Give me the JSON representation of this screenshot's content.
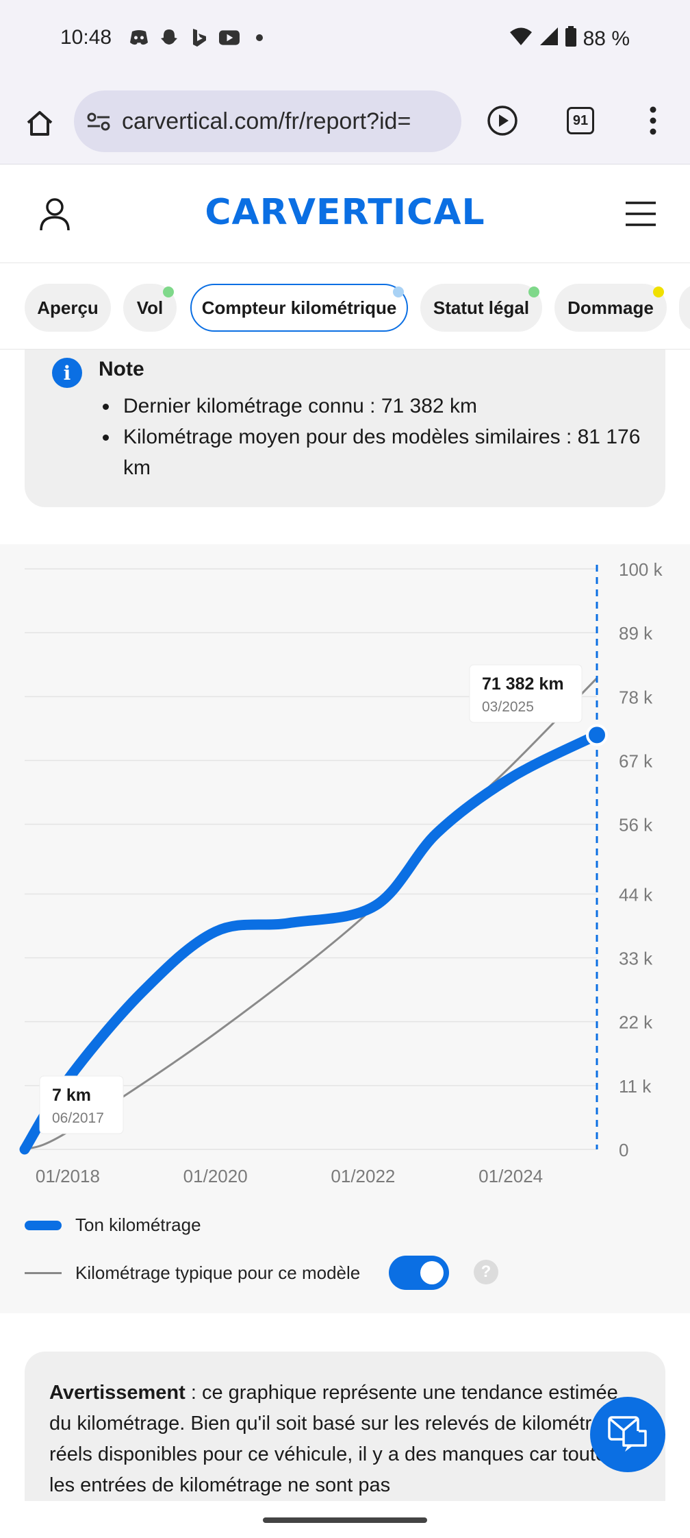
{
  "status_bar": {
    "time": "10:48",
    "battery": "88 %",
    "left_icons": [
      "discord-icon",
      "snapchat-icon",
      "bing-icon",
      "youtube-icon",
      "dot-icon"
    ],
    "right_icons": [
      "wifi-icon",
      "signal-icon",
      "battery-icon"
    ]
  },
  "browser": {
    "url": "carvertical.com/fr/report?id=",
    "tab_count": "91"
  },
  "site": {
    "logo": "CARVERTICAL",
    "brand_color": "#0b6fe3"
  },
  "tabs": [
    {
      "label": "Aperçu",
      "dot_color": ""
    },
    {
      "label": "Vol",
      "dot_color": "#7fd88a"
    },
    {
      "label": "Compteur kilométrique",
      "dot_color": "#a9d2f5",
      "active": true
    },
    {
      "label": "Statut légal",
      "dot_color": "#7fd88a"
    },
    {
      "label": "Dommage",
      "dot_color": "#f0e000"
    }
  ],
  "note": {
    "title": "Note",
    "items": [
      "Dernier kilométrage connu : 71 382 km",
      "Kilométrage moyen pour des modèles similaires : 81 176 km"
    ]
  },
  "chart_data": {
    "type": "line",
    "x_tick_labels": [
      "01/2018",
      "01/2020",
      "01/2022",
      "01/2024"
    ],
    "y_tick_labels": [
      "100 k",
      "89 k",
      "78 k",
      "67 k",
      "56 k",
      "44 k",
      "33 k",
      "22 k",
      "11 k",
      "0"
    ],
    "y_ticks": [
      100000,
      89000,
      78000,
      67000,
      56000,
      44000,
      33000,
      22000,
      11000,
      0
    ],
    "ylim": [
      0,
      100000
    ],
    "xlim": [
      "2017-06",
      "2025-03"
    ],
    "grid": true,
    "series": [
      {
        "name": "Ton kilométrage",
        "color": "#0b6fe3",
        "points": [
          {
            "x": "2017-06",
            "y": 7
          },
          {
            "x": "2018-01",
            "y": 12000
          },
          {
            "x": "2019-01",
            "y": 27000
          },
          {
            "x": "2020-01",
            "y": 37500
          },
          {
            "x": "2021-01",
            "y": 39000
          },
          {
            "x": "2022-03",
            "y": 42000
          },
          {
            "x": "2023-01",
            "y": 54500
          },
          {
            "x": "2024-01",
            "y": 64000
          },
          {
            "x": "2025-03",
            "y": 71382
          }
        ]
      },
      {
        "name": "Kilométrage typique pour ce modèle",
        "color": "#8a8a8a",
        "points": [
          {
            "x": "2017-06",
            "y": 0
          },
          {
            "x": "2018-01",
            "y": 3000
          },
          {
            "x": "2020-01",
            "y": 20000
          },
          {
            "x": "2022-01",
            "y": 40000
          },
          {
            "x": "2023-01",
            "y": 54000
          },
          {
            "x": "2024-01",
            "y": 66000
          },
          {
            "x": "2025-03",
            "y": 81176
          }
        ]
      }
    ],
    "annotations": [
      {
        "value": "7 km",
        "date": "06/2017"
      },
      {
        "value": "71 382 km",
        "date": "03/2025"
      }
    ]
  },
  "legend": {
    "own": "Ton kilométrage",
    "typical": "Kilométrage typique pour ce modèle",
    "toggle_on": true,
    "help": "?"
  },
  "warning": {
    "label": "Avertissement",
    "text": " : ce graphique représente une tendance estimée du kilométrage. Bien qu'il soit basé sur les relevés de kilométrage réels disponibles pour ce véhicule, il y a des manques car toutes les entrées de kilométrage ne sont pas"
  }
}
